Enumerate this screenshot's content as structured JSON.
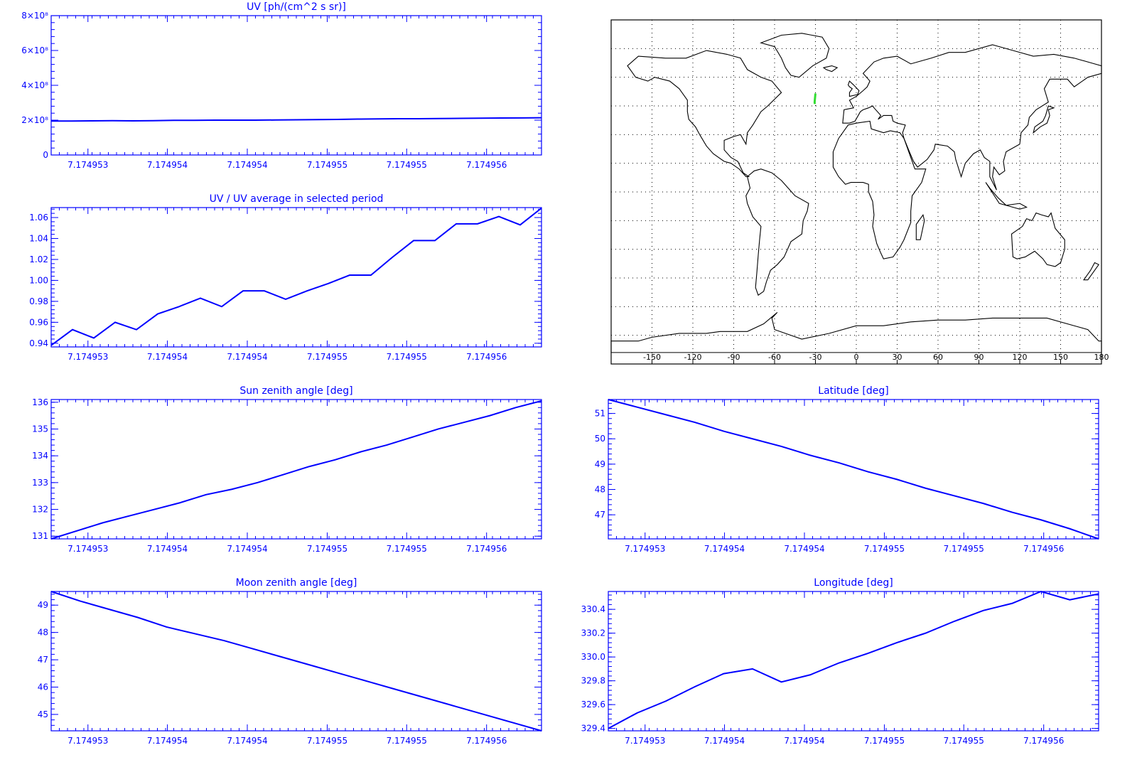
{
  "colors": {
    "plot": "#0000ff",
    "map_outline": "#000000",
    "track": "#33dd33",
    "background": "#ffffff"
  },
  "x_tick_labels": [
    "7.174953",
    "7.174954",
    "7.174954",
    "7.174955",
    "7.174955",
    "7.174956"
  ],
  "chart_data": [
    {
      "id": "uv",
      "type": "line",
      "title": "UV [ph/(cm^2 s sr)]",
      "xlabel": "",
      "ylabel": "",
      "ylim": [
        0,
        800000000.0
      ],
      "yticks": [
        {
          "value": 0,
          "label": "0"
        },
        {
          "value": 200000000.0,
          "label": "2×10⁸"
        },
        {
          "value": 400000000.0,
          "label": "4×10⁸"
        },
        {
          "value": 600000000.0,
          "label": "6×10⁸"
        },
        {
          "value": 800000000.0,
          "label": "8×10⁸"
        }
      ],
      "values": [
        195000000.0,
        195000000.0,
        196000000.0,
        197000000.0,
        196000000.0,
        197000000.0,
        199000000.0,
        199000000.0,
        200000000.0,
        200000000.0,
        200000000.0,
        201000000.0,
        202000000.0,
        203000000.0,
        204000000.0,
        206000000.0,
        207000000.0,
        208000000.0,
        208000000.0,
        209000000.0,
        210000000.0,
        211000000.0,
        212000000.0,
        213000000.0,
        214000000.0
      ],
      "grid": false
    },
    {
      "id": "uv_ratio",
      "type": "line",
      "title": "UV / UV average in selected period",
      "xlabel": "",
      "ylabel": "",
      "ylim": [
        0.9365,
        1.0695
      ],
      "yticks": [
        {
          "value": 0.94,
          "label": "0.94"
        },
        {
          "value": 0.96,
          "label": "0.96"
        },
        {
          "value": 0.98,
          "label": "0.98"
        },
        {
          "value": 1.0,
          "label": "1.00"
        },
        {
          "value": 1.02,
          "label": "1.02"
        },
        {
          "value": 1.04,
          "label": "1.04"
        },
        {
          "value": 1.06,
          "label": "1.06"
        }
      ],
      "values": [
        0.938,
        0.953,
        0.945,
        0.96,
        0.953,
        0.968,
        0.975,
        0.983,
        0.975,
        0.99,
        0.99,
        0.982,
        0.99,
        0.997,
        1.005,
        1.005,
        1.022,
        1.038,
        1.038,
        1.054,
        1.054,
        1.061,
        1.053,
        1.069
      ],
      "grid": false
    },
    {
      "id": "sun_zenith",
      "type": "line",
      "title": "Sun zenith angle [deg]",
      "xlabel": "",
      "ylabel": "",
      "ylim": [
        130.9,
        136.1
      ],
      "yticks": [
        {
          "value": 131,
          "label": "131"
        },
        {
          "value": 132,
          "label": "132"
        },
        {
          "value": 133,
          "label": "133"
        },
        {
          "value": 134,
          "label": "134"
        },
        {
          "value": 135,
          "label": "135"
        },
        {
          "value": 136,
          "label": "136"
        }
      ],
      "values": [
        130.9,
        131.2,
        131.5,
        131.75,
        132.0,
        132.25,
        132.55,
        132.75,
        133.0,
        133.3,
        133.6,
        133.85,
        134.15,
        134.4,
        134.7,
        135.0,
        135.25,
        135.5,
        135.8,
        136.05
      ],
      "grid": false
    },
    {
      "id": "moon_zenith",
      "type": "line",
      "title": "Moon zenith angle [deg]",
      "xlabel": "",
      "ylabel": "",
      "ylim": [
        44.4,
        49.5
      ],
      "yticks": [
        {
          "value": 45,
          "label": "45"
        },
        {
          "value": 46,
          "label": "46"
        },
        {
          "value": 47,
          "label": "47"
        },
        {
          "value": 48,
          "label": "48"
        },
        {
          "value": 49,
          "label": "49"
        }
      ],
      "values": [
        49.5,
        49.15,
        48.85,
        48.55,
        48.2,
        47.95,
        47.7,
        47.4,
        47.1,
        46.8,
        46.5,
        46.2,
        45.9,
        45.6,
        45.3,
        45.0,
        44.7,
        44.4
      ],
      "grid": false
    },
    {
      "id": "latitude",
      "type": "line",
      "title": "Latitude [deg]",
      "xlabel": "",
      "ylabel": "",
      "ylim": [
        46.05,
        51.55
      ],
      "yticks": [
        {
          "value": 47,
          "label": "47"
        },
        {
          "value": 48,
          "label": "48"
        },
        {
          "value": 49,
          "label": "49"
        },
        {
          "value": 50,
          "label": "50"
        },
        {
          "value": 51,
          "label": "51"
        }
      ],
      "values": [
        51.55,
        51.25,
        50.95,
        50.65,
        50.3,
        50.0,
        49.7,
        49.35,
        49.05,
        48.7,
        48.4,
        48.05,
        47.75,
        47.45,
        47.1,
        46.8,
        46.45,
        46.05
      ],
      "grid": false
    },
    {
      "id": "longitude",
      "type": "line",
      "title": "Longitude [deg]",
      "xlabel": "",
      "ylabel": "",
      "ylim": [
        329.38,
        330.55
      ],
      "yticks": [
        {
          "value": 329.4,
          "label": "329.4"
        },
        {
          "value": 329.6,
          "label": "329.6"
        },
        {
          "value": 329.8,
          "label": "329.8"
        },
        {
          "value": 330.0,
          "label": "330.0"
        },
        {
          "value": 330.2,
          "label": "330.2"
        },
        {
          "value": 330.4,
          "label": "330.4"
        }
      ],
      "values": [
        329.4,
        329.53,
        329.63,
        329.75,
        329.86,
        329.9,
        329.79,
        329.85,
        329.95,
        330.03,
        330.12,
        330.2,
        330.3,
        330.39,
        330.45,
        330.55,
        330.48,
        330.53
      ],
      "grid": false
    },
    {
      "id": "world_map",
      "type": "map",
      "title": "",
      "xticks": [
        {
          "value": -150,
          "label": "-150"
        },
        {
          "value": -120,
          "label": "-120"
        },
        {
          "value": -90,
          "label": "-90"
        },
        {
          "value": -60,
          "label": "-60"
        },
        {
          "value": -30,
          "label": "-30"
        },
        {
          "value": 0,
          "label": "0"
        },
        {
          "value": 30,
          "label": "30"
        },
        {
          "value": 60,
          "label": "60"
        },
        {
          "value": 90,
          "label": "90"
        },
        {
          "value": 120,
          "label": "120"
        },
        {
          "value": 150,
          "label": "150"
        },
        {
          "value": 180,
          "label": "180"
        }
      ],
      "xlim": [
        -180,
        180
      ],
      "ylim": [
        -90,
        90
      ],
      "grid": true,
      "track": [
        [
          -30,
          51.5
        ],
        [
          -30.2,
          50.0
        ],
        [
          -30.4,
          48.5
        ],
        [
          -30.6,
          47.0
        ],
        [
          -30.5,
          46.0
        ]
      ]
    }
  ]
}
